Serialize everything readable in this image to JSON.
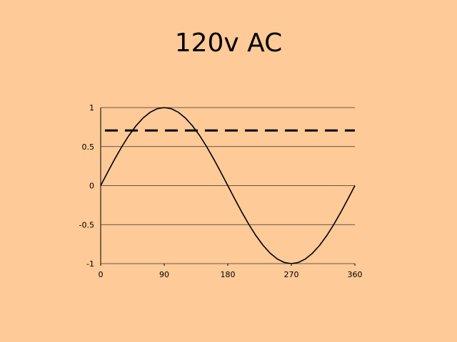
{
  "chart_data": {
    "type": "line",
    "title": "120v AC",
    "series": [
      {
        "color": "#000000",
        "dash": false,
        "x": [
          0,
          10,
          20,
          30,
          40,
          50,
          60,
          70,
          80,
          90,
          100,
          110,
          120,
          130,
          140,
          150,
          160,
          170,
          180,
          190,
          200,
          210,
          220,
          230,
          240,
          250,
          260,
          270,
          280,
          290,
          300,
          310,
          320,
          330,
          340,
          350,
          360
        ],
        "values": [
          0,
          0.174,
          0.342,
          0.5,
          0.643,
          0.766,
          0.866,
          0.94,
          0.985,
          1,
          0.985,
          0.94,
          0.866,
          0.766,
          0.643,
          0.5,
          0.342,
          0.174,
          0,
          -0.174,
          -0.342,
          -0.5,
          -0.643,
          -0.766,
          -0.866,
          -0.94,
          -0.985,
          -1,
          -0.985,
          -0.94,
          -0.866,
          -0.766,
          -0.643,
          -0.5,
          -0.342,
          -0.174,
          0
        ]
      },
      {
        "color": "#000000",
        "dash": true,
        "x": [
          6,
          360
        ],
        "values": [
          0.707,
          0.707
        ]
      }
    ],
    "xlim": [
      0,
      360
    ],
    "xticks": [
      0,
      90,
      180,
      270,
      360
    ],
    "ylim": [
      -1,
      1
    ],
    "yticks": [
      -1,
      -0.5,
      0,
      0.5,
      1
    ],
    "grid": true
  }
}
